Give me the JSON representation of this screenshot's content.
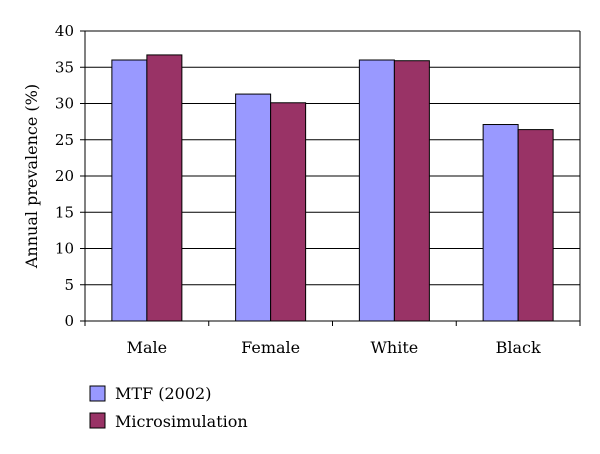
{
  "chart_data": {
    "type": "bar",
    "title": "",
    "xlabel": "",
    "ylabel": "Annual prevalence (%)",
    "categories": [
      "Male",
      "Female",
      "White",
      "Black"
    ],
    "series": [
      {
        "name": "MTF (2002)",
        "values": [
          36.0,
          31.3,
          36.0,
          27.1
        ]
      },
      {
        "name": "Microsimulation",
        "values": [
          36.7,
          30.1,
          35.9,
          26.4
        ]
      }
    ],
    "ylim": [
      0,
      40
    ],
    "yticks": [
      0,
      5,
      10,
      15,
      20,
      25,
      30,
      35,
      40
    ],
    "grid": "horizontal",
    "legend_position": "bottom-left",
    "colors": {
      "series": [
        "#9999ff",
        "#993366"
      ],
      "grid": "#000000",
      "bar_edge": "#000000"
    }
  }
}
